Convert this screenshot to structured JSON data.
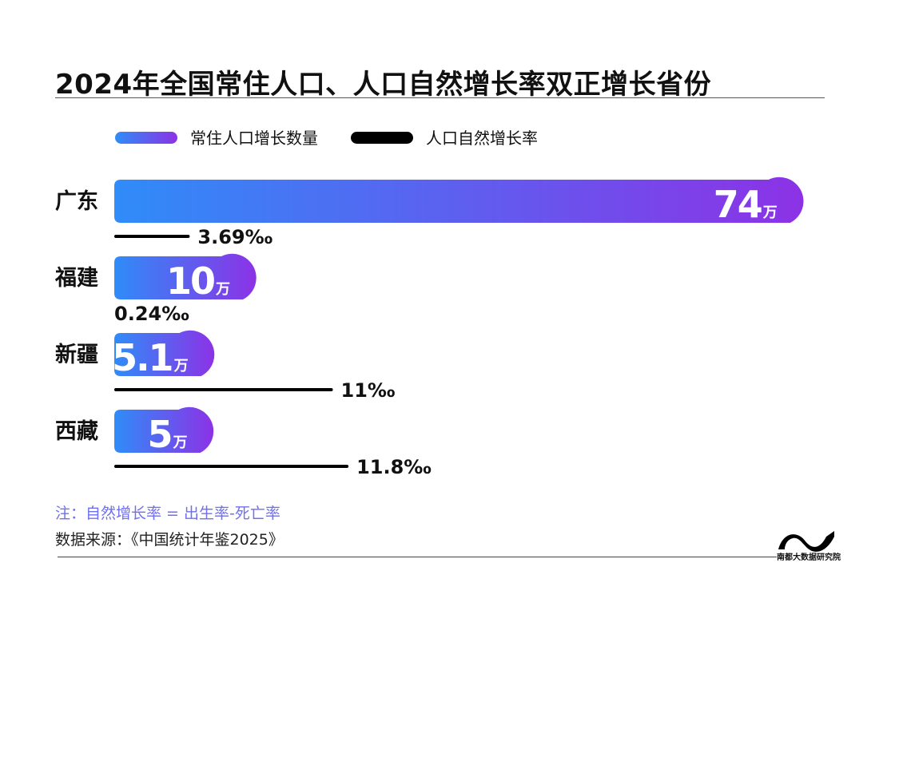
{
  "title": "2024年全国常住人口、人口自然增长率双正增长省份",
  "legend": {
    "population_label": "常住人口增长数量",
    "rate_label": "人口自然增长率"
  },
  "colors": {
    "bar_start": "#2f8cf8",
    "bar_end": "#8c32e6",
    "rate_line": "#000000",
    "note": "#6f6ff0"
  },
  "chart_data": {
    "type": "bar",
    "orientation": "horizontal",
    "categories": [
      "广东",
      "福建",
      "新疆",
      "西藏"
    ],
    "series": [
      {
        "name": "常住人口增长数量",
        "values": [
          74,
          10,
          5.1,
          5
        ],
        "value_labels": [
          "74",
          "10",
          "5.1",
          "5"
        ],
        "unit": "万"
      },
      {
        "name": "人口自然增长率",
        "values": [
          3.69,
          0.24,
          11,
          11.8
        ],
        "value_labels": [
          "3.69‰",
          "0.24‰",
          "11‰",
          "11.8‰"
        ],
        "unit": "‰"
      }
    ]
  },
  "note": "注：自然增长率 = 出生率-死亡率",
  "source": "数据来源：《中国统计年鉴2025》",
  "brand": {
    "logo_icon": "wave-logo-icon",
    "name": "南都大数据研究院"
  }
}
